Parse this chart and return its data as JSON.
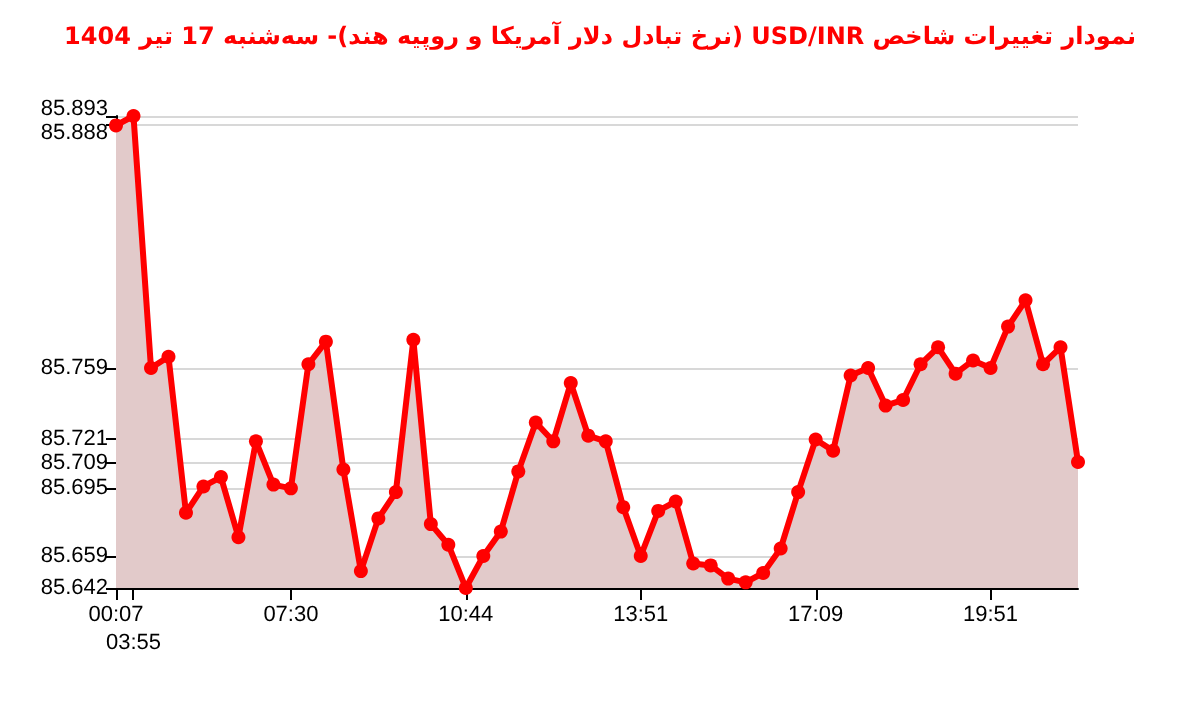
{
  "chart_data": {
    "type": "area",
    "title": "نمودار تغییرات شاخص USD/INR (نرخ تبادل دلار آمریکا و روپیه هند)- سه‌شنبه 17 تیر 1404",
    "categories": [
      "00:07",
      "03:55",
      null,
      null,
      null,
      null,
      null,
      null,
      null,
      null,
      "07:30",
      null,
      null,
      null,
      null,
      null,
      null,
      null,
      null,
      null,
      "10:44",
      null,
      null,
      null,
      null,
      null,
      null,
      null,
      null,
      null,
      "13:51",
      null,
      null,
      null,
      null,
      null,
      null,
      null,
      null,
      null,
      "17:09",
      null,
      null,
      null,
      null,
      null,
      null,
      null,
      null,
      null,
      "19:51",
      null,
      null,
      null,
      null,
      null
    ],
    "series": [
      {
        "color": "#ff0000",
        "values": [
          85.888,
          85.893,
          85.759,
          85.765,
          85.682,
          85.696,
          85.701,
          85.669,
          85.72,
          85.697,
          85.695,
          85.761,
          85.773,
          85.705,
          85.651,
          85.679,
          85.693,
          85.774,
          85.676,
          85.665,
          85.642,
          85.659,
          85.672,
          85.704,
          85.73,
          85.72,
          85.751,
          85.723,
          85.72,
          85.685,
          85.659,
          85.683,
          85.688,
          85.655,
          85.654,
          85.647,
          85.645,
          85.65,
          85.663,
          85.693,
          85.721,
          85.715,
          85.755,
          85.759,
          85.739,
          85.742,
          85.761,
          85.77,
          85.756,
          85.763,
          85.759,
          85.781,
          85.795,
          85.761,
          85.77,
          85.709
        ]
      }
    ],
    "ylim": [
      85.642,
      85.893
    ],
    "yticks": [
      85.642,
      85.659,
      85.695,
      85.709,
      85.721,
      85.759,
      85.888,
      85.893
    ],
    "grid": "y",
    "marker": "circle",
    "line_style": "solid"
  }
}
